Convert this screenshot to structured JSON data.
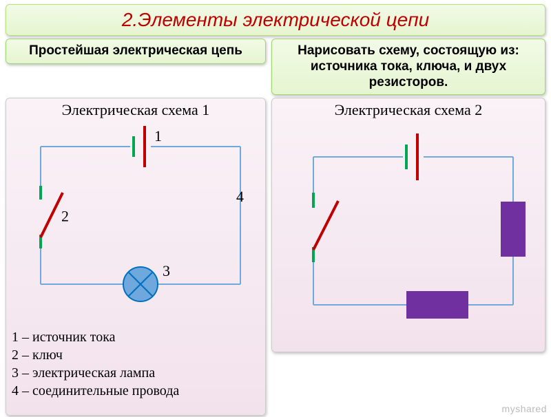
{
  "title": {
    "text": "2.Элементы электрической цепи",
    "color": "#c00000",
    "bg": "#e6f5d0",
    "fontsize": 28
  },
  "left": {
    "header": {
      "text": "Простейшая электрическая цепь",
      "bg": "#e6f5d0",
      "color": "#000000"
    },
    "schema_title": "Электрическая схема 1",
    "panel_bg": "#f2e2ec",
    "legend": [
      "1 – источник тока",
      "2 – ключ",
      "3 – электрическая лампа",
      "4 – соединительные провода"
    ],
    "circuit": {
      "wire_color": "#6fa8dc",
      "wire_width": 2,
      "battery_short_color": "#00a651",
      "battery_long_color": "#c00000",
      "lamp_fill": "#6fa8dc",
      "lamp_stroke": "#0070c0",
      "switch_color": "#c00000",
      "switch_terminal_color": "#00a651",
      "labels": {
        "1": "1",
        "2": "2",
        "3": "3",
        "4": "4"
      }
    }
  },
  "right": {
    "header": {
      "text": "Нарисовать схему, состоящую из: источника тока, ключа, и двух резисторов.",
      "bg": "#e6f5d0",
      "color": "#000000"
    },
    "schema_title": "Электрическая схема 2",
    "panel_bg": "#f2e2ec",
    "circuit": {
      "wire_color": "#6fa8dc",
      "wire_width": 2,
      "battery_short_color": "#00a651",
      "battery_long_color": "#c00000",
      "switch_color": "#c00000",
      "switch_terminal_color": "#00a651",
      "resistor_fill": "#7030a0"
    }
  },
  "watermark": "myshared"
}
